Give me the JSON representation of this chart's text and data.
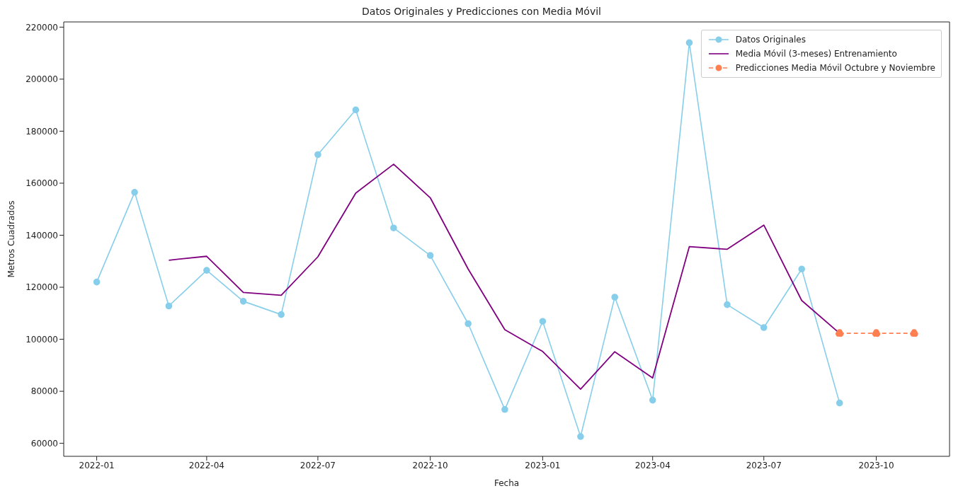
{
  "chart_data": {
    "type": "line",
    "title": "Datos Originales y Predicciones con Media Móvil",
    "xlabel": "Fecha",
    "ylabel": "Metros Cuadrados",
    "xlim": [
      "2021-12-05",
      "2023-11-30"
    ],
    "xticks": [
      "2022-01",
      "2022-04",
      "2022-07",
      "2022-10",
      "2023-01",
      "2023-04",
      "2023-07",
      "2023-10"
    ],
    "ylim": [
      55000,
      222000
    ],
    "yticks": [
      60000,
      80000,
      100000,
      120000,
      140000,
      160000,
      180000,
      200000,
      220000
    ],
    "grid": false,
    "legend": "top right",
    "series": [
      {
        "name": "Datos Originales",
        "color": "#87ceeb",
        "marker": "circle",
        "line_style": "solid",
        "x": [
          "2022-01",
          "2022-02",
          "2022-03",
          "2022-04",
          "2022-05",
          "2022-06",
          "2022-07",
          "2022-08",
          "2022-09",
          "2022-10",
          "2022-11",
          "2022-12",
          "2023-01",
          "2023-02",
          "2023-03",
          "2023-04",
          "2023-05",
          "2023-06",
          "2023-07",
          "2023-08",
          "2023-09"
        ],
        "values": [
          122000,
          156500,
          112800,
          126500,
          114600,
          109500,
          171000,
          188200,
          142800,
          132200,
          106000,
          73000,
          106900,
          62600,
          116200,
          76600,
          214000,
          113300,
          104500,
          127000,
          75500
        ]
      },
      {
        "name": "Media Móvil (3-meses) Entrenamiento",
        "color": "#800080",
        "marker": "none",
        "line_style": "solid",
        "x": [
          "2022-03",
          "2022-04",
          "2022-05",
          "2022-06",
          "2022-07",
          "2022-08",
          "2022-09",
          "2022-10",
          "2022-11",
          "2022-12",
          "2023-01",
          "2023-02",
          "2023-03",
          "2023-04",
          "2023-05",
          "2023-06",
          "2023-07",
          "2023-08",
          "2023-09"
        ],
        "values": [
          130400,
          131900,
          118000,
          116900,
          131700,
          156200,
          167300,
          154400,
          127000,
          103700,
          95300,
          80800,
          95200,
          85100,
          135600,
          134600,
          143900,
          114900,
          102300
        ]
      },
      {
        "name": "Predicciones Media Móvil Octubre y Noviembre",
        "color": "#ff7f50",
        "marker": "circle",
        "line_style": "dashed",
        "x": [
          "2023-09",
          "2023-10",
          "2023-11"
        ],
        "values": [
          102300,
          102300,
          102300
        ]
      }
    ]
  }
}
